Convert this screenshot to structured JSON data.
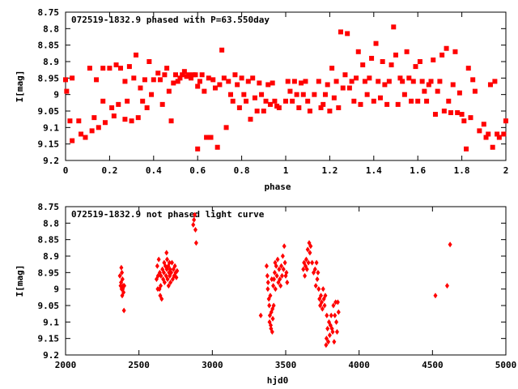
{
  "chart_data": [
    {
      "type": "scatter",
      "title": "072519-1832.9 phased with P=63.550day",
      "xlabel": "phase",
      "ylabel": "I[mag]",
      "xlim": [
        0,
        2
      ],
      "ylim": [
        8.75,
        9.2
      ],
      "y_inverted": true,
      "xticks": [
        "0",
        "0.2",
        "0.4",
        "0.6",
        "0.8",
        "1",
        "1.2",
        "1.4",
        "1.6",
        "1.8",
        "2"
      ],
      "yticks": [
        "8.75",
        "8.8",
        "8.85",
        "8.9",
        "8.95",
        "9",
        "9.05",
        "9.1",
        "9.15",
        "9.2"
      ],
      "marker": "filled-square",
      "color": "#ff0000",
      "points": [
        [
          0.0,
          8.955
        ],
        [
          0.005,
          8.99
        ],
        [
          0.02,
          9.08
        ],
        [
          0.03,
          9.14
        ],
        [
          0.03,
          8.95
        ],
        [
          0.06,
          9.08
        ],
        [
          0.07,
          9.12
        ],
        [
          0.09,
          9.13
        ],
        [
          0.11,
          8.92
        ],
        [
          0.12,
          9.11
        ],
        [
          0.13,
          9.07
        ],
        [
          0.14,
          8.955
        ],
        [
          0.15,
          9.1
        ],
        [
          0.17,
          9.02
        ],
        [
          0.17,
          8.92
        ],
        [
          0.18,
          9.085
        ],
        [
          0.2,
          8.92
        ],
        [
          0.21,
          9.04
        ],
        [
          0.22,
          9.065
        ],
        [
          0.23,
          8.91
        ],
        [
          0.24,
          9.03
        ],
        [
          0.25,
          8.92
        ],
        [
          0.27,
          9.075
        ],
        [
          0.27,
          8.96
        ],
        [
          0.28,
          9.02
        ],
        [
          0.29,
          8.915
        ],
        [
          0.3,
          9.08
        ],
        [
          0.31,
          8.95
        ],
        [
          0.32,
          8.88
        ],
        [
          0.33,
          9.07
        ],
        [
          0.34,
          8.98
        ],
        [
          0.35,
          9.02
        ],
        [
          0.36,
          8.955
        ],
        [
          0.37,
          9.04
        ],
        [
          0.38,
          8.9
        ],
        [
          0.39,
          9.0
        ],
        [
          0.4,
          8.955
        ],
        [
          0.42,
          8.935
        ],
        [
          0.43,
          8.955
        ],
        [
          0.44,
          9.03
        ],
        [
          0.45,
          8.94
        ],
        [
          0.46,
          8.92
        ],
        [
          0.47,
          8.99
        ],
        [
          0.48,
          9.08
        ],
        [
          0.49,
          8.965
        ],
        [
          0.5,
          8.94
        ],
        [
          0.51,
          8.96
        ],
        [
          0.52,
          8.95
        ],
        [
          0.53,
          8.94
        ],
        [
          0.54,
          8.93
        ],
        [
          0.55,
          8.945
        ],
        [
          0.56,
          8.94
        ],
        [
          0.57,
          8.95
        ],
        [
          0.58,
          8.94
        ],
        [
          0.59,
          8.94
        ],
        [
          0.6,
          8.975
        ],
        [
          0.6,
          9.165
        ],
        [
          0.61,
          8.96
        ],
        [
          0.62,
          8.94
        ],
        [
          0.63,
          8.99
        ],
        [
          0.64,
          9.13
        ],
        [
          0.65,
          8.95
        ],
        [
          0.66,
          9.13
        ],
        [
          0.67,
          8.955
        ],
        [
          0.68,
          8.98
        ],
        [
          0.69,
          9.16
        ],
        [
          0.7,
          8.97
        ],
        [
          0.71,
          8.865
        ],
        [
          0.72,
          8.95
        ],
        [
          0.73,
          9.1
        ],
        [
          0.74,
          8.96
        ],
        [
          0.75,
          9.0
        ],
        [
          0.76,
          9.02
        ],
        [
          0.77,
          8.94
        ],
        [
          0.78,
          8.97
        ],
        [
          0.79,
          9.04
        ],
        [
          0.8,
          8.95
        ],
        [
          0.81,
          9.0
        ],
        [
          0.82,
          9.02
        ],
        [
          0.83,
          8.96
        ],
        [
          0.84,
          9.075
        ],
        [
          0.85,
          8.95
        ],
        [
          0.86,
          9.01
        ],
        [
          0.87,
          9.05
        ],
        [
          0.88,
          8.965
        ],
        [
          0.89,
          9.0
        ],
        [
          0.9,
          9.05
        ],
        [
          0.91,
          9.02
        ],
        [
          0.92,
          8.97
        ],
        [
          0.93,
          9.03
        ],
        [
          0.94,
          8.965
        ],
        [
          0.95,
          9.02
        ],
        [
          0.96,
          9.035
        ],
        [
          0.97,
          9.04
        ],
        [
          1.0,
          9.02
        ],
        [
          1.01,
          8.96
        ],
        [
          1.02,
          8.99
        ],
        [
          1.03,
          9.02
        ],
        [
          1.04,
          8.96
        ],
        [
          1.05,
          9.0
        ],
        [
          1.06,
          9.04
        ],
        [
          1.07,
          8.965
        ],
        [
          1.08,
          9.0
        ],
        [
          1.09,
          8.96
        ],
        [
          1.1,
          9.02
        ],
        [
          1.11,
          9.05
        ],
        [
          1.13,
          9.0
        ],
        [
          1.15,
          8.96
        ],
        [
          1.16,
          9.04
        ],
        [
          1.17,
          9.03
        ],
        [
          1.18,
          9.0
        ],
        [
          1.19,
          8.97
        ],
        [
          1.2,
          9.05
        ],
        [
          1.21,
          8.92
        ],
        [
          1.22,
          9.01
        ],
        [
          1.23,
          8.96
        ],
        [
          1.24,
          9.04
        ],
        [
          1.25,
          8.81
        ],
        [
          1.26,
          8.98
        ],
        [
          1.27,
          8.94
        ],
        [
          1.28,
          8.815
        ],
        [
          1.29,
          8.98
        ],
        [
          1.3,
          8.96
        ],
        [
          1.31,
          9.02
        ],
        [
          1.32,
          8.95
        ],
        [
          1.33,
          8.87
        ],
        [
          1.34,
          9.03
        ],
        [
          1.35,
          8.91
        ],
        [
          1.36,
          8.96
        ],
        [
          1.37,
          9.0
        ],
        [
          1.38,
          8.95
        ],
        [
          1.39,
          8.89
        ],
        [
          1.4,
          9.02
        ],
        [
          1.41,
          8.845
        ],
        [
          1.42,
          8.96
        ],
        [
          1.43,
          9.01
        ],
        [
          1.44,
          8.9
        ],
        [
          1.45,
          8.97
        ],
        [
          1.46,
          9.03
        ],
        [
          1.47,
          8.96
        ],
        [
          1.48,
          8.91
        ],
        [
          1.49,
          8.795
        ],
        [
          1.5,
          8.88
        ],
        [
          1.51,
          9.03
        ],
        [
          1.52,
          8.95
        ],
        [
          1.53,
          8.96
        ],
        [
          1.54,
          9.0
        ],
        [
          1.55,
          8.87
        ],
        [
          1.56,
          8.95
        ],
        [
          1.57,
          9.02
        ],
        [
          1.58,
          8.96
        ],
        [
          1.59,
          8.915
        ],
        [
          1.6,
          9.02
        ],
        [
          1.61,
          8.9
        ],
        [
          1.62,
          8.96
        ],
        [
          1.63,
          8.99
        ],
        [
          1.64,
          9.02
        ],
        [
          1.65,
          8.97
        ],
        [
          1.66,
          8.96
        ],
        [
          1.67,
          8.895
        ],
        [
          1.68,
          9.06
        ],
        [
          1.69,
          8.99
        ],
        [
          1.7,
          8.96
        ],
        [
          1.71,
          8.88
        ],
        [
          1.72,
          9.05
        ],
        [
          1.73,
          8.86
        ],
        [
          1.74,
          9.02
        ],
        [
          1.75,
          9.055
        ],
        [
          1.76,
          8.97
        ],
        [
          1.77,
          8.87
        ],
        [
          1.78,
          9.055
        ],
        [
          1.79,
          8.995
        ],
        [
          1.8,
          9.06
        ],
        [
          1.81,
          9.08
        ],
        [
          1.82,
          9.165
        ],
        [
          1.83,
          8.92
        ],
        [
          1.84,
          9.07
        ],
        [
          1.85,
          8.955
        ],
        [
          1.86,
          8.99
        ],
        [
          1.88,
          9.11
        ],
        [
          1.9,
          9.09
        ],
        [
          1.91,
          9.13
        ],
        [
          1.92,
          9.12
        ],
        [
          1.93,
          8.97
        ],
        [
          1.94,
          9.16
        ],
        [
          1.95,
          8.96
        ],
        [
          1.96,
          9.12
        ],
        [
          1.97,
          9.13
        ],
        [
          1.99,
          9.12
        ],
        [
          2.0,
          9.08
        ]
      ]
    },
    {
      "type": "scatter",
      "title": "072519-1832.9 not phased light curve",
      "xlabel": "hjd0",
      "ylabel": "I[mag]",
      "xlim": [
        2000,
        5000
      ],
      "ylim": [
        8.75,
        9.2
      ],
      "y_inverted": true,
      "xticks": [
        "2000",
        "2500",
        "3000",
        "3500",
        "4000",
        "4500",
        "5000"
      ],
      "yticks": [
        "8.75",
        "8.8",
        "8.85",
        "8.9",
        "8.95",
        "9",
        "9.05",
        "9.1",
        "9.15",
        "9.2"
      ],
      "marker": "diamond",
      "color": "#ff0000",
      "points": [
        [
          2370,
          8.96
        ],
        [
          2375,
          8.99
        ],
        [
          2378,
          8.98
        ],
        [
          2380,
          8.935
        ],
        [
          2382,
          9.0
        ],
        [
          2384,
          8.95
        ],
        [
          2386,
          9.02
        ],
        [
          2388,
          8.97
        ],
        [
          2390,
          9.0
        ],
        [
          2392,
          8.99
        ],
        [
          2395,
          9.01
        ],
        [
          2398,
          9.065
        ],
        [
          2400,
          8.99
        ],
        [
          2620,
          8.97
        ],
        [
          2625,
          8.93
        ],
        [
          2628,
          9.0
        ],
        [
          2630,
          8.96
        ],
        [
          2635,
          8.91
        ],
        [
          2640,
          9.0
        ],
        [
          2642,
          8.95
        ],
        [
          2645,
          9.02
        ],
        [
          2648,
          8.99
        ],
        [
          2650,
          8.96
        ],
        [
          2655,
          9.03
        ],
        [
          2660,
          8.94
        ],
        [
          2665,
          8.97
        ],
        [
          2670,
          8.95
        ],
        [
          2672,
          8.92
        ],
        [
          2675,
          8.98
        ],
        [
          2680,
          8.93
        ],
        [
          2685,
          8.96
        ],
        [
          2688,
          8.89
        ],
        [
          2690,
          8.94
        ],
        [
          2692,
          8.91
        ],
        [
          2695,
          8.97
        ],
        [
          2700,
          8.93
        ],
        [
          2702,
          8.99
        ],
        [
          2705,
          8.95
        ],
        [
          2708,
          8.92
        ],
        [
          2710,
          8.96
        ],
        [
          2712,
          8.94
        ],
        [
          2715,
          8.98
        ],
        [
          2720,
          8.95
        ],
        [
          2725,
          8.92
        ],
        [
          2730,
          8.97
        ],
        [
          2735,
          8.94
        ],
        [
          2740,
          8.96
        ],
        [
          2745,
          8.93
        ],
        [
          2750,
          8.95
        ],
        [
          2755,
          8.965
        ],
        [
          2760,
          8.945
        ],
        [
          2870,
          8.805
        ],
        [
          2875,
          8.79
        ],
        [
          2880,
          8.775
        ],
        [
          2885,
          8.82
        ],
        [
          2890,
          8.86
        ],
        [
          3330,
          9.08
        ],
        [
          3370,
          8.93
        ],
        [
          3375,
          8.96
        ],
        [
          3378,
          9.0
        ],
        [
          3380,
          8.98
        ],
        [
          3385,
          9.03
        ],
        [
          3388,
          9.05
        ],
        [
          3390,
          9.1
        ],
        [
          3392,
          9.08
        ],
        [
          3395,
          9.02
        ],
        [
          3398,
          9.11
        ],
        [
          3400,
          9.12
        ],
        [
          3402,
          9.07
        ],
        [
          3405,
          8.97
        ],
        [
          3408,
          9.13
        ],
        [
          3410,
          9.06
        ],
        [
          3412,
          9.09
        ],
        [
          3415,
          8.99
        ],
        [
          3418,
          9.05
        ],
        [
          3420,
          8.97
        ],
        [
          3425,
          8.95
        ],
        [
          3428,
          8.92
        ],
        [
          3430,
          9.0
        ],
        [
          3435,
          8.93
        ],
        [
          3440,
          8.96
        ],
        [
          3445,
          8.91
        ],
        [
          3450,
          8.98
        ],
        [
          3455,
          8.94
        ],
        [
          3460,
          8.97
        ],
        [
          3465,
          8.99
        ],
        [
          3470,
          8.93
        ],
        [
          3475,
          8.96
        ],
        [
          3480,
          8.9
        ],
        [
          3485,
          8.94
        ],
        [
          3490,
          8.87
        ],
        [
          3495,
          8.92
        ],
        [
          3500,
          8.96
        ],
        [
          3505,
          8.95
        ],
        [
          3510,
          8.98
        ],
        [
          3620,
          8.94
        ],
        [
          3625,
          8.92
        ],
        [
          3630,
          8.96
        ],
        [
          3635,
          8.93
        ],
        [
          3640,
          8.91
        ],
        [
          3645,
          8.94
        ],
        [
          3650,
          8.88
        ],
        [
          3655,
          8.92
        ],
        [
          3660,
          8.86
        ],
        [
          3665,
          8.89
        ],
        [
          3670,
          8.87
        ],
        [
          3680,
          8.92
        ],
        [
          3690,
          8.95
        ],
        [
          3700,
          8.94
        ],
        [
          3705,
          8.99
        ],
        [
          3710,
          8.92
        ],
        [
          3715,
          8.97
        ],
        [
          3720,
          8.95
        ],
        [
          3725,
          9.0
        ],
        [
          3730,
          9.03
        ],
        [
          3735,
          9.05
        ],
        [
          3740,
          9.02
        ],
        [
          3745,
          9.04
        ],
        [
          3750,
          9.06
        ],
        [
          3755,
          9.0
        ],
        [
          3760,
          9.03
        ],
        [
          3765,
          9.05
        ],
        [
          3770,
          9.02
        ],
        [
          3775,
          9.17
        ],
        [
          3778,
          9.15
        ],
        [
          3780,
          9.08
        ],
        [
          3785,
          9.12
        ],
        [
          3790,
          9.16
        ],
        [
          3795,
          9.1
        ],
        [
          3800,
          9.14
        ],
        [
          3805,
          9.11
        ],
        [
          3810,
          9.08
        ],
        [
          3815,
          9.12
        ],
        [
          3820,
          9.13
        ],
        [
          3825,
          9.05
        ],
        [
          3830,
          9.16
        ],
        [
          3835,
          9.08
        ],
        [
          3840,
          9.04
        ],
        [
          3845,
          9.1
        ],
        [
          3850,
          9.13
        ],
        [
          3855,
          9.04
        ],
        [
          3860,
          9.07
        ],
        [
          4520,
          9.02
        ],
        [
          4600,
          8.99
        ],
        [
          4620,
          8.865
        ]
      ]
    }
  ]
}
